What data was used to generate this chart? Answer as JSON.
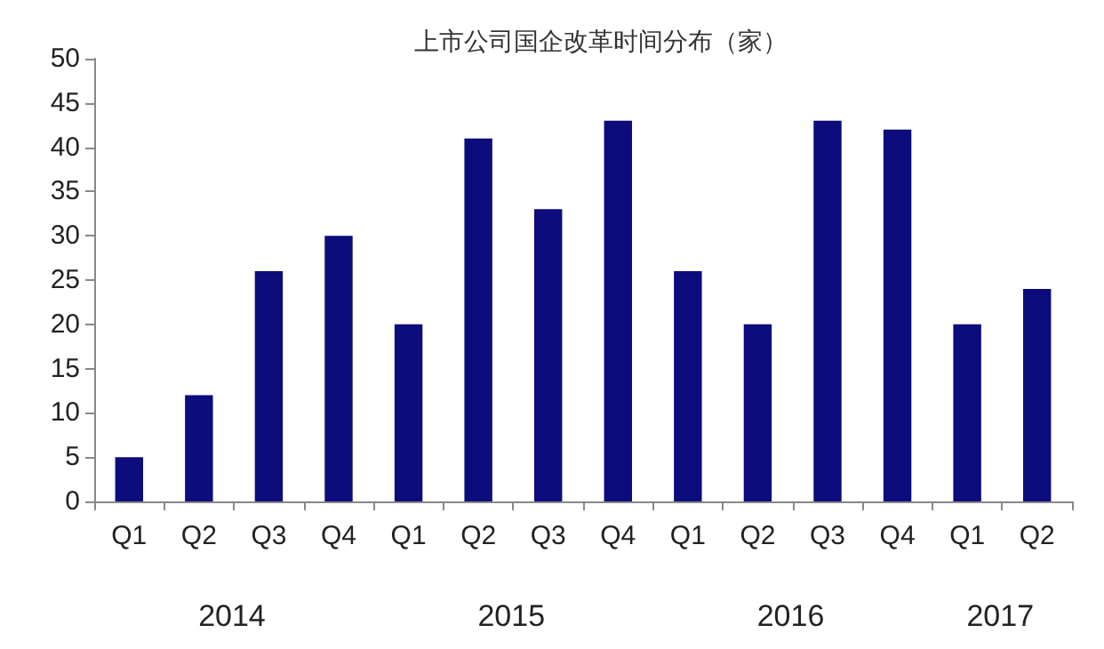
{
  "chart_data": {
    "type": "bar",
    "title": "上市公司国企改革时间分布（家）",
    "categories": [
      "Q1",
      "Q2",
      "Q3",
      "Q4",
      "Q1",
      "Q2",
      "Q3",
      "Q4",
      "Q1",
      "Q2",
      "Q3",
      "Q4",
      "Q1",
      "Q2"
    ],
    "values": [
      5,
      12,
      26,
      30,
      20,
      41,
      33,
      43,
      26,
      20,
      43,
      42,
      20,
      24
    ],
    "color": "#0c0c7c",
    "ylim": [
      0,
      50
    ],
    "yticks": [
      0,
      5,
      10,
      15,
      20,
      25,
      30,
      35,
      40,
      45,
      50
    ],
    "grid": false,
    "annotations": [
      "2014",
      "2015",
      "2016",
      "2017"
    ]
  }
}
